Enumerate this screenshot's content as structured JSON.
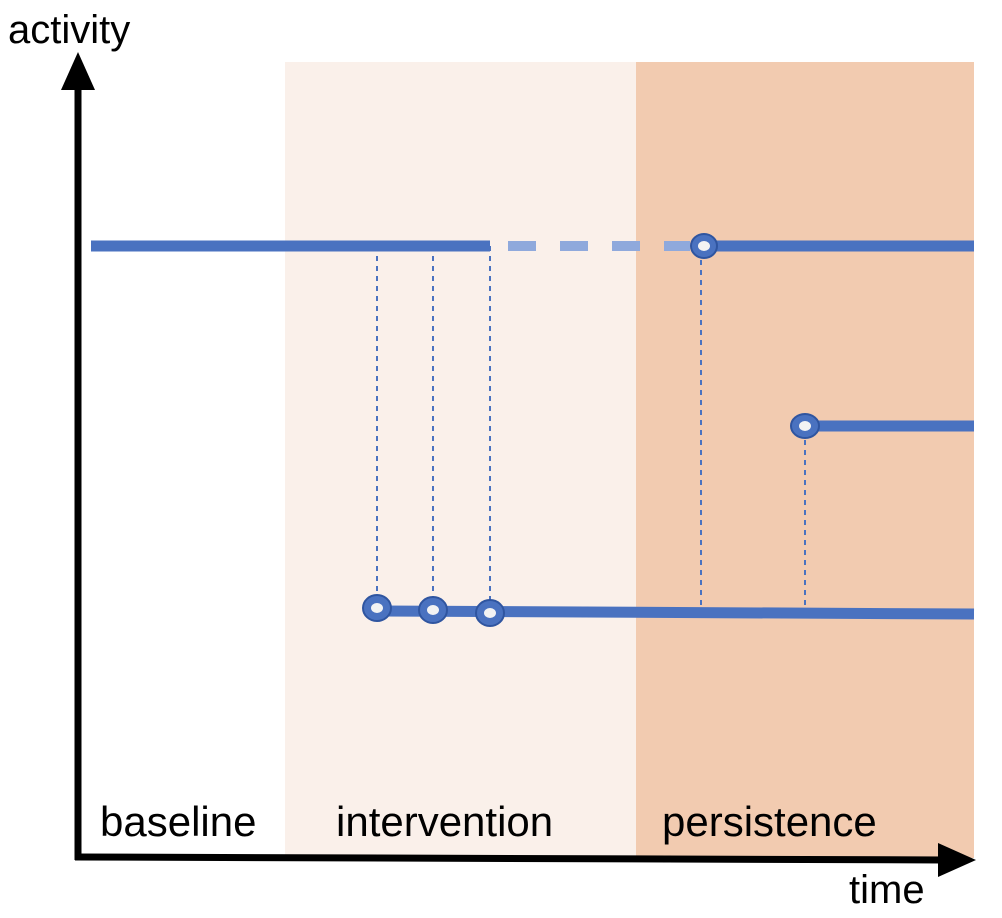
{
  "axes": {
    "y_label": "activity",
    "x_label": "time"
  },
  "phases": [
    {
      "id": "baseline",
      "label": "baseline",
      "color": "#ffffff"
    },
    {
      "id": "intervention",
      "label": "intervention",
      "color": "#faf0ea"
    },
    {
      "id": "persistence",
      "label": "persistence",
      "color": "#f2cbb0"
    }
  ],
  "colors": {
    "line": "#4a72c0",
    "line_faded": "#8fa9dc",
    "axis": "#000000",
    "marker_fill": "#4a72c0",
    "marker_center": "#f3f3f3"
  }
}
